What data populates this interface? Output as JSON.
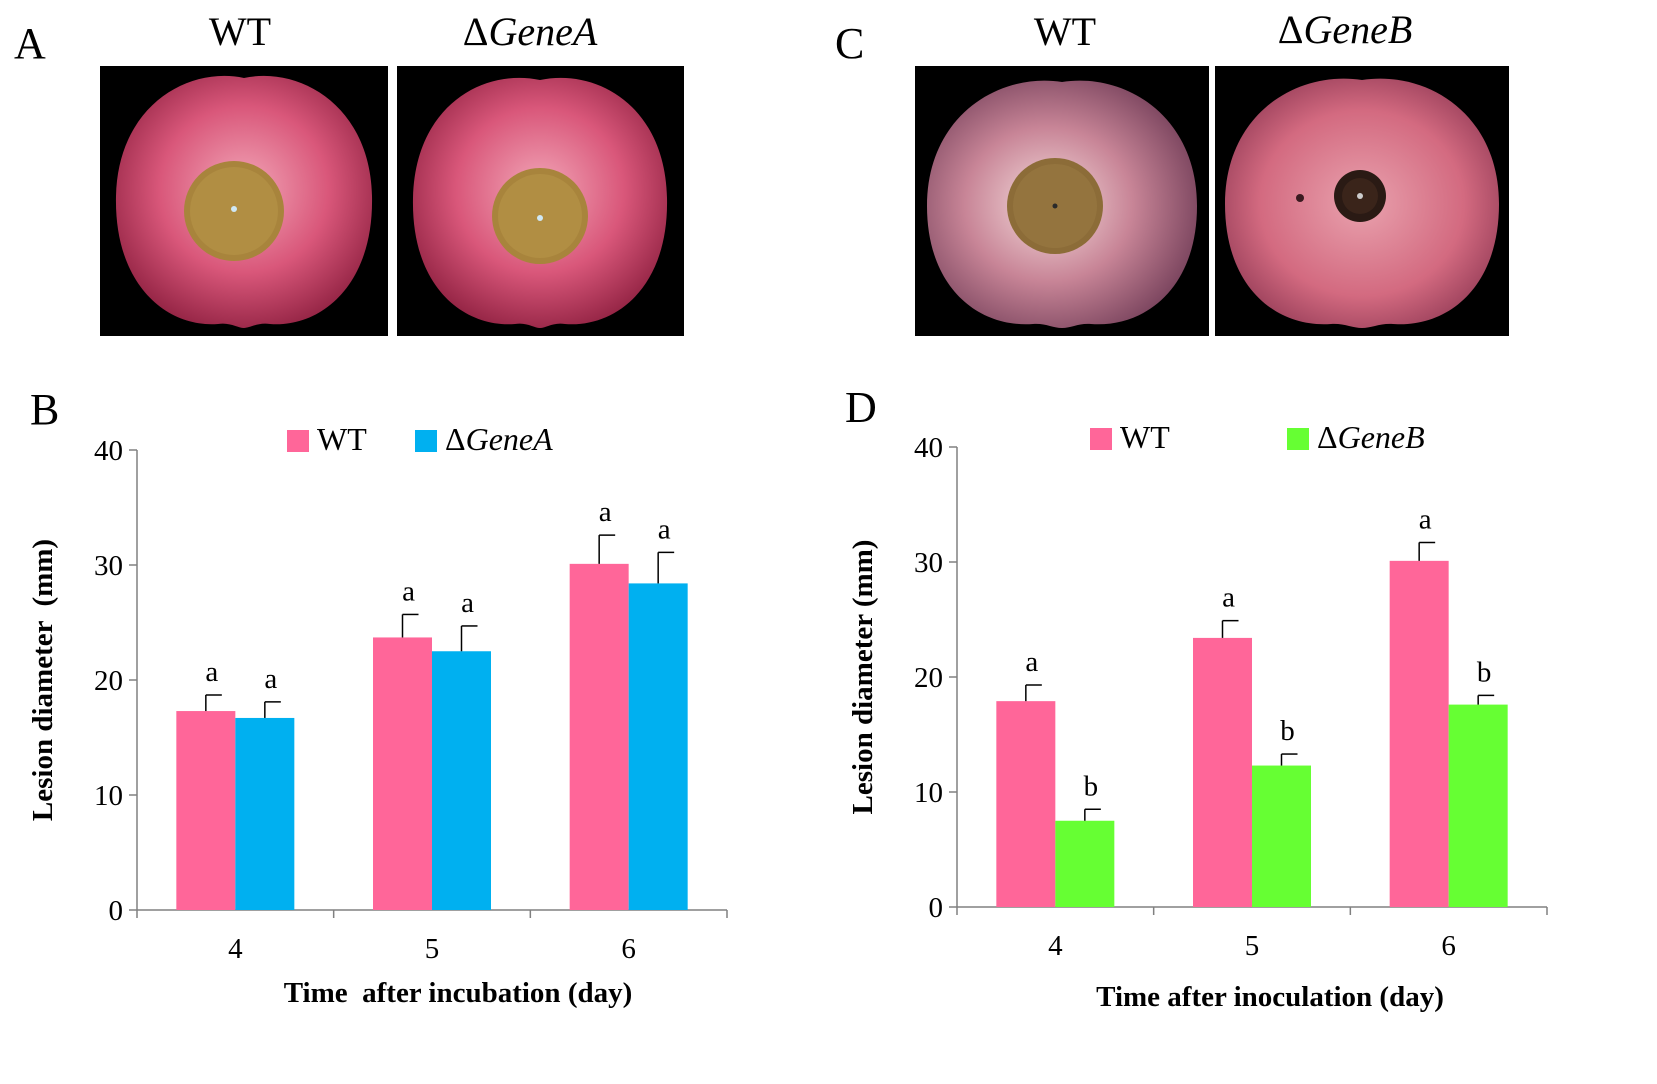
{
  "panels": {
    "A": {
      "letter": "A",
      "titles": [
        {
          "prefix": "",
          "italic": "",
          "plain": "WT"
        },
        {
          "prefix": "Δ",
          "italic": "GeneA",
          "plain": ""
        }
      ]
    },
    "C": {
      "letter": "C",
      "titles": [
        {
          "prefix": "",
          "italic": "",
          "plain": "WT"
        },
        {
          "prefix": "Δ",
          "italic": "GeneB",
          "plain": ""
        }
      ]
    }
  },
  "chart_data": [
    {
      "panel": "B",
      "type": "bar",
      "categories": [
        "4",
        "5",
        "6"
      ],
      "xlabel": "Time  after incubation (day)",
      "ylabel": "Lesion diameter  (mm)",
      "ylim": [
        0,
        40
      ],
      "yticks": [
        0,
        10,
        20,
        30,
        40
      ],
      "legend_position": "top-center",
      "series": [
        {
          "name": "WT",
          "name_prefix": "",
          "name_italic": "",
          "color": "#ff6699",
          "values": [
            17.3,
            23.7,
            30.1
          ],
          "errors": [
            1.4,
            2.0,
            2.5
          ],
          "labels": [
            "a",
            "a",
            "a"
          ]
        },
        {
          "name": "ΔGeneA",
          "name_prefix": "Δ",
          "name_italic": "GeneA",
          "color": "#00b0f0",
          "values": [
            16.7,
            22.5,
            28.4
          ],
          "errors": [
            1.4,
            2.2,
            2.7
          ],
          "labels": [
            "a",
            "a",
            "a"
          ]
        }
      ]
    },
    {
      "panel": "D",
      "type": "bar",
      "categories": [
        "4",
        "5",
        "6"
      ],
      "xlabel": "Time after inoculation (day)",
      "ylabel": "Lesion diameter (mm)",
      "ylim": [
        0,
        40
      ],
      "yticks": [
        0,
        10,
        20,
        30,
        40
      ],
      "legend_position": "top-center",
      "series": [
        {
          "name": "WT",
          "name_prefix": "",
          "name_italic": "",
          "color": "#ff6699",
          "values": [
            17.9,
            23.4,
            30.1
          ],
          "errors": [
            1.4,
            1.5,
            1.6
          ],
          "labels": [
            "a",
            "a",
            "a"
          ]
        },
        {
          "name": "ΔGeneB",
          "name_prefix": "Δ",
          "name_italic": "GeneB",
          "color": "#66ff33",
          "values": [
            7.5,
            12.3,
            17.6
          ],
          "errors": [
            1.0,
            1.0,
            0.8
          ],
          "labels": [
            "b",
            "b",
            "b"
          ]
        }
      ]
    }
  ]
}
